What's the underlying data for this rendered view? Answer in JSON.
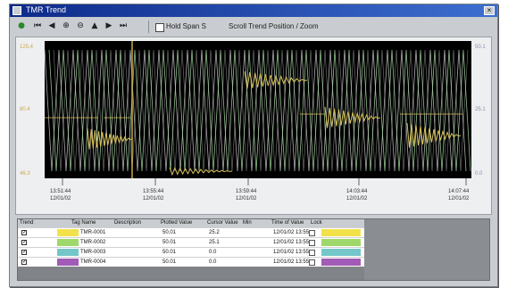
{
  "window": {
    "title": "TMR Trend"
  },
  "toolbar": {
    "buttons": [
      {
        "name": "trend-icon",
        "glyph": "●"
      },
      {
        "name": "rewind-icon",
        "glyph": "⏮"
      },
      {
        "name": "step-back-icon",
        "glyph": "◀"
      },
      {
        "name": "zoom-in-icon",
        "glyph": "⊕"
      },
      {
        "name": "zoom-out-icon",
        "glyph": "⊖"
      },
      {
        "name": "cursor-up-icon",
        "glyph": "▲"
      },
      {
        "name": "play-icon",
        "glyph": "▶"
      },
      {
        "name": "fast-forward-icon",
        "glyph": "⏭"
      }
    ],
    "zoom_label": "Hold Span S",
    "status_text": "Scroll Trend Position / Zoom"
  },
  "plot": {
    "background": "#000000",
    "colors": {
      "green": "#9fd19a",
      "grey": "#c9c9c9",
      "yellow": "#d8c35a",
      "cursor": "#c9a94a"
    },
    "left_ticks": [
      "125.4",
      "80.4",
      "46.3"
    ],
    "right_ticks": [
      "50.1",
      "25.1",
      "0.0"
    ],
    "x_ticks": [
      {
        "time": "13:51:44",
        "date": "12/01/02"
      },
      {
        "time": "13:55:44",
        "date": "12/01/02"
      },
      {
        "time": "13:59:44",
        "date": "12/01/02"
      },
      {
        "time": "14:03:44",
        "date": "12/01/02"
      },
      {
        "time": "14:07:44",
        "date": "12/01/02"
      }
    ]
  },
  "table": {
    "headers": [
      "Trend",
      "Tag Name",
      "Description",
      "Plotted Value",
      "Cursor Value",
      "Min",
      "Time of Value",
      "Lock"
    ],
    "rows": [
      {
        "tag": "TMR-0001",
        "plotted": "50.01",
        "cursor": "25.2",
        "min": "",
        "time": "12/01/02 13:55",
        "color": "#f2e14a"
      },
      {
        "tag": "TMR-0002",
        "plotted": "50.01",
        "cursor": "25.1",
        "min": "",
        "time": "12/01/02 13:55",
        "color": "#9fd86a"
      },
      {
        "tag": "TMR-0003",
        "plotted": "50.01",
        "cursor": "0.0",
        "min": "",
        "time": "12/01/02 13:55",
        "color": "#74c6c9"
      },
      {
        "tag": "TMR-0004",
        "plotted": "50.01",
        "cursor": "0.0",
        "min": "",
        "time": "12/01/02 13:55",
        "color": "#a25bb6"
      }
    ]
  }
}
